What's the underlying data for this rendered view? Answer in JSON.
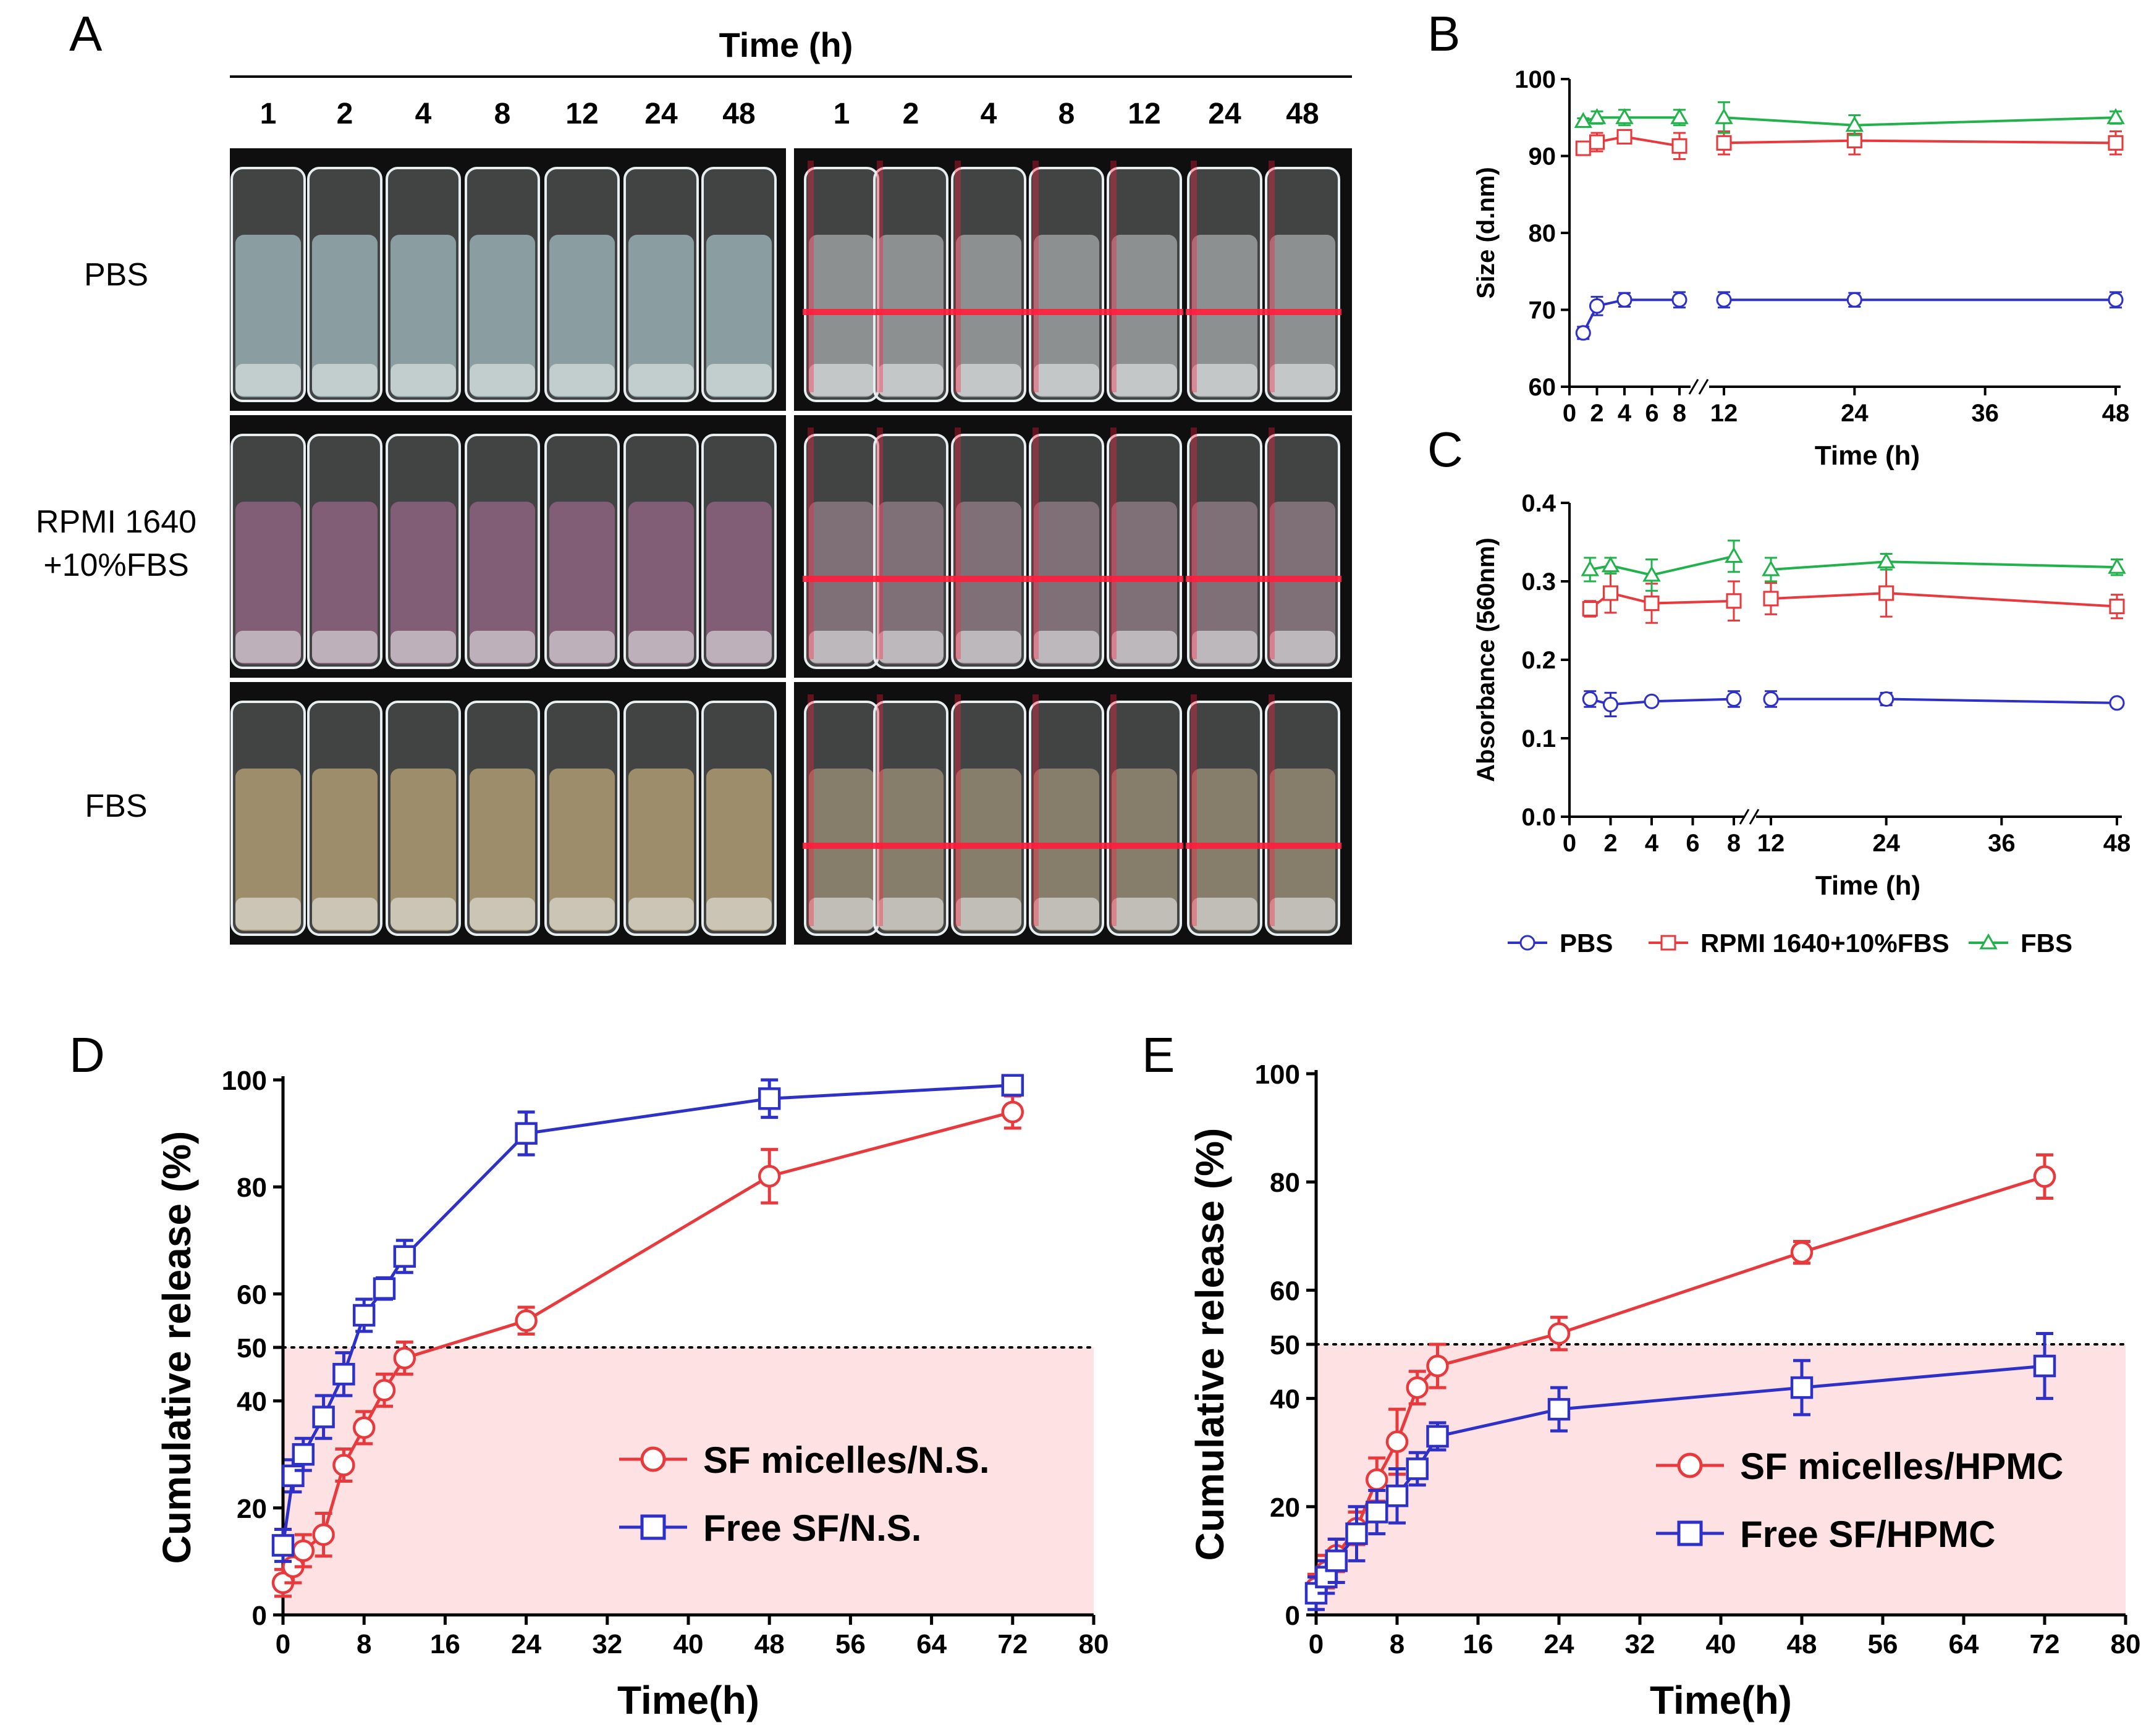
{
  "panel_letters": {
    "a": "A",
    "b": "B",
    "c": "C",
    "d": "D",
    "e": "E"
  },
  "photo_panel": {
    "time_header": "Time (h)",
    "time_labels": [
      "1",
      "2",
      "4",
      "8",
      "12",
      "24",
      "48"
    ],
    "rows": [
      {
        "label_lines": [
          "PBS"
        ],
        "tint": "#a9c3c9",
        "laser_tint": "#e6eef0"
      },
      {
        "label_lines": [
          "RPMI 1640",
          "+10%FBS"
        ],
        "tint": "#9c6a8a",
        "laser_tint": "#caa6b8"
      },
      {
        "label_lines": [
          "FBS"
        ],
        "tint": "#c4ad7c",
        "laser_tint": "#d9c39c"
      }
    ],
    "laser_color": "#ff1e3c"
  },
  "legend_bc": [
    {
      "label": "PBS",
      "color": "#2e31c7",
      "marker": "circle"
    },
    {
      "label": "RPMI 1640+10%FBS",
      "color": "#e8393d",
      "marker": "square"
    },
    {
      "label": "FBS",
      "color": "#22b24c",
      "marker": "triangle"
    }
  ],
  "chart_data": [
    {
      "id": "B",
      "type": "line",
      "xlabel": "Time (h)",
      "ylabel": "Size (d.nm)",
      "ylim": [
        60,
        100
      ],
      "yticks": [
        60,
        70,
        80,
        90,
        100
      ],
      "xticks_left": [
        0,
        2,
        4,
        6,
        8
      ],
      "xticks_right": [
        12,
        24,
        36,
        48
      ],
      "x": [
        1,
        2,
        4,
        8,
        12,
        24,
        48
      ],
      "series": [
        {
          "name": "PBS",
          "color": "#2e31c7",
          "marker": "circle",
          "values": [
            67,
            70.5,
            71.3,
            71.3,
            71.3,
            71.3,
            71.3
          ],
          "err": [
            0.8,
            1.2,
            0.9,
            1.0,
            1.0,
            0.9,
            1.0
          ]
        },
        {
          "name": "RPMI 1640+10%FBS",
          "color": "#e8393d",
          "marker": "square",
          "values": [
            91.0,
            91.8,
            92.5,
            91.3,
            91.7,
            92.0,
            91.7
          ],
          "err": [
            0.7,
            1.2,
            0.8,
            1.7,
            1.5,
            1.8,
            1.5
          ]
        },
        {
          "name": "FBS",
          "color": "#22b24c",
          "marker": "triangle",
          "values": [
            94.5,
            95.0,
            95.0,
            95.0,
            95.0,
            94.0,
            95.0
          ],
          "err": [
            0.4,
            0.8,
            1.0,
            1.0,
            2.0,
            1.3,
            0.8
          ]
        }
      ]
    },
    {
      "id": "C",
      "type": "line",
      "xlabel": "Time (h)",
      "ylabel": "Absorbance (560nm)",
      "ylim": [
        0.0,
        0.4
      ],
      "yticks": [
        "0.0",
        "0.1",
        "0.2",
        "0.3",
        "0.4"
      ],
      "xticks_left": [
        0,
        2,
        4,
        6,
        8
      ],
      "xticks_right": [
        12,
        24,
        36,
        48
      ],
      "x": [
        1,
        2,
        4,
        8,
        12,
        24,
        48
      ],
      "series": [
        {
          "name": "PBS",
          "color": "#2e31c7",
          "marker": "circle",
          "values": [
            0.15,
            0.143,
            0.147,
            0.15,
            0.15,
            0.15,
            0.145
          ],
          "err": [
            0.01,
            0.015,
            0.005,
            0.01,
            0.01,
            0.008,
            0.004
          ]
        },
        {
          "name": "RPMI 1640+10%FBS",
          "color": "#e8393d",
          "marker": "square",
          "values": [
            0.265,
            0.285,
            0.272,
            0.275,
            0.278,
            0.285,
            0.268
          ],
          "err": [
            0.01,
            0.025,
            0.025,
            0.025,
            0.02,
            0.03,
            0.015
          ]
        },
        {
          "name": "FBS",
          "color": "#22b24c",
          "marker": "triangle",
          "values": [
            0.315,
            0.32,
            0.308,
            0.332,
            0.315,
            0.325,
            0.318
          ],
          "err": [
            0.015,
            0.01,
            0.02,
            0.02,
            0.015,
            0.01,
            0.01
          ]
        }
      ]
    },
    {
      "id": "D",
      "type": "line",
      "xlabel": "Time(h)",
      "ylabel": "Cumulative release (%)",
      "xlim": [
        0,
        80
      ],
      "ylim": [
        0,
        100
      ],
      "xticks": [
        0,
        8,
        16,
        24,
        32,
        40,
        48,
        56,
        64,
        72,
        80
      ],
      "yticks": [
        0,
        20,
        40,
        50,
        60,
        80,
        100
      ],
      "threshold": 50,
      "shade_color": "#fde1e3",
      "series": [
        {
          "name": "SF micelles/N.S.",
          "color": "#e8393d",
          "marker": "circle",
          "x": [
            0,
            1,
            2,
            4,
            6,
            8,
            10,
            12,
            24,
            48,
            72
          ],
          "values": [
            6,
            9,
            12,
            15,
            28,
            35,
            42,
            48,
            55,
            82,
            94
          ],
          "err": [
            2.5,
            3,
            3,
            4,
            3,
            3,
            3,
            3,
            2.5,
            5,
            3
          ]
        },
        {
          "name": "Free SF/N.S.",
          "color": "#2e31c7",
          "marker": "square",
          "x": [
            0,
            1,
            2,
            4,
            6,
            8,
            10,
            12,
            24,
            48,
            72
          ],
          "values": [
            13,
            26,
            30,
            37,
            45,
            56,
            61,
            67,
            90,
            96.5,
            99
          ],
          "err": [
            3,
            3,
            3,
            4,
            4,
            3,
            2,
            3,
            4,
            3.5,
            1.5
          ]
        }
      ]
    },
    {
      "id": "E",
      "type": "line",
      "xlabel": "Time(h)",
      "ylabel": "Cumulative release (%)",
      "xlim": [
        0,
        80
      ],
      "ylim": [
        0,
        100
      ],
      "xticks": [
        0,
        8,
        16,
        24,
        32,
        40,
        48,
        56,
        64,
        72,
        80
      ],
      "yticks": [
        0,
        20,
        40,
        50,
        60,
        80,
        100
      ],
      "threshold": 50,
      "shade_color": "#fde1e3",
      "series": [
        {
          "name": "SF micelles/HPMC",
          "color": "#e8393d",
          "marker": "circle",
          "x": [
            0,
            1,
            2,
            4,
            6,
            8,
            10,
            12,
            24,
            48,
            72
          ],
          "values": [
            5,
            8,
            11,
            16,
            25,
            32,
            42,
            46,
            52,
            67,
            81
          ],
          "err": [
            2.5,
            3,
            3,
            3,
            4,
            6,
            3,
            4,
            3,
            2,
            4
          ]
        },
        {
          "name": "Free SF/HPMC",
          "color": "#2e31c7",
          "marker": "square",
          "x": [
            0,
            1,
            2,
            4,
            6,
            8,
            10,
            12,
            24,
            48,
            72
          ],
          "values": [
            4,
            7,
            10,
            15,
            19,
            22,
            27,
            33,
            38,
            42,
            46
          ],
          "err": [
            3,
            3,
            4,
            5,
            4,
            5,
            3,
            2.5,
            4,
            5,
            6
          ]
        }
      ]
    }
  ]
}
